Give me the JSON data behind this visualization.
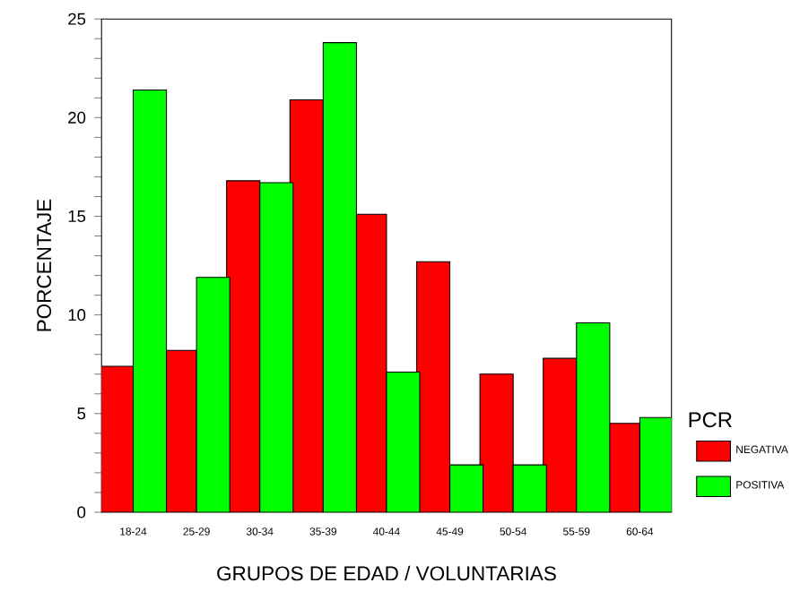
{
  "chart_data": {
    "type": "bar",
    "xlabel": "GRUPOS DE EDAD / VOLUNTARIAS",
    "ylabel": "PORCENTAJE",
    "legend_title": "PCR",
    "categories": [
      "18-24",
      "25-29",
      "30-34",
      "35-39",
      "40-44",
      "45-49",
      "50-54",
      "55-59",
      "60-64"
    ],
    "series": [
      {
        "name": "NEGATIVA",
        "color": "#ff0000",
        "values": [
          7.4,
          8.2,
          16.8,
          20.9,
          15.1,
          12.7,
          7.0,
          7.8,
          4.5
        ]
      },
      {
        "name": "POSITIVA",
        "color": "#00ff00",
        "values": [
          21.4,
          11.9,
          16.7,
          23.8,
          7.1,
          2.4,
          2.4,
          9.6,
          4.8
        ]
      }
    ],
    "ylim": [
      0,
      25
    ],
    "yticks": [
      0,
      5,
      10,
      15,
      20,
      25
    ],
    "grid": false,
    "legend": "bottom right"
  }
}
